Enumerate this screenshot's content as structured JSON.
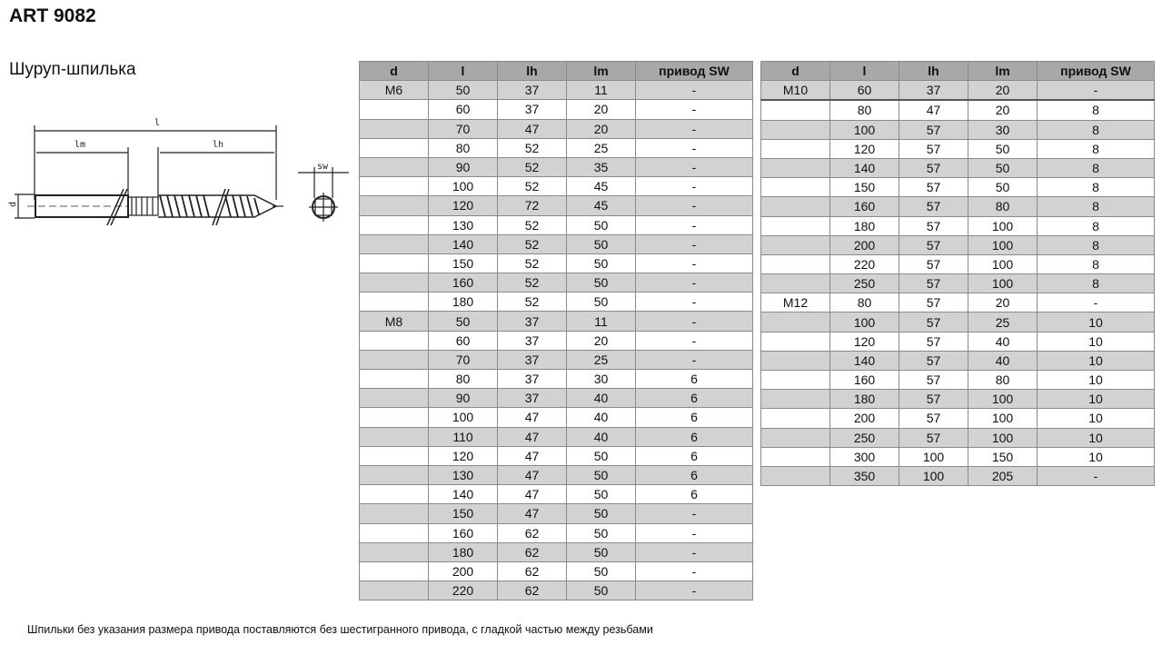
{
  "title": "ART 9082",
  "subtitle": "Шуруп-шпилька",
  "drawing": {
    "labels": {
      "l": "l",
      "lm": "lm",
      "lh": "lh",
      "d": "d",
      "sw": "sw"
    }
  },
  "tables": [
    {
      "headers": [
        "d",
        "l",
        "lh",
        "lm",
        "привод SW"
      ],
      "rows": [
        [
          "M6",
          "50",
          "37",
          "11",
          "-"
        ],
        [
          "",
          "60",
          "37",
          "20",
          "-"
        ],
        [
          "",
          "70",
          "47",
          "20",
          "-"
        ],
        [
          "",
          "80",
          "52",
          "25",
          "-"
        ],
        [
          "",
          "90",
          "52",
          "35",
          "-"
        ],
        [
          "",
          "100",
          "52",
          "45",
          "-"
        ],
        [
          "",
          "120",
          "72",
          "45",
          "-"
        ],
        [
          "",
          "130",
          "52",
          "50",
          "-"
        ],
        [
          "",
          "140",
          "52",
          "50",
          "-"
        ],
        [
          "",
          "150",
          "52",
          "50",
          "-"
        ],
        [
          "",
          "160",
          "52",
          "50",
          "-"
        ],
        [
          "",
          "180",
          "52",
          "50",
          "-"
        ],
        [
          "M8",
          "50",
          "37",
          "11",
          "-"
        ],
        [
          "",
          "60",
          "37",
          "20",
          "-"
        ],
        [
          "",
          "70",
          "37",
          "25",
          "-"
        ],
        [
          "",
          "80",
          "37",
          "30",
          "6"
        ],
        [
          "",
          "90",
          "37",
          "40",
          "6"
        ],
        [
          "",
          "100",
          "47",
          "40",
          "6"
        ],
        [
          "",
          "110",
          "47",
          "40",
          "6"
        ],
        [
          "",
          "120",
          "47",
          "50",
          "6"
        ],
        [
          "",
          "130",
          "47",
          "50",
          "6"
        ],
        [
          "",
          "140",
          "47",
          "50",
          "6"
        ],
        [
          "",
          "150",
          "47",
          "50",
          "-"
        ],
        [
          "",
          "160",
          "62",
          "50",
          "-"
        ],
        [
          "",
          "180",
          "62",
          "50",
          "-"
        ],
        [
          "",
          "200",
          "62",
          "50",
          "-"
        ],
        [
          "",
          "220",
          "62",
          "50",
          "-"
        ]
      ]
    },
    {
      "headers": [
        "d",
        "l",
        "lh",
        "lm",
        "привод SW"
      ],
      "rows": [
        [
          "M10",
          "60",
          "37",
          "20",
          "-"
        ],
        [
          "",
          "80",
          "47",
          "20",
          "8"
        ],
        [
          "",
          "100",
          "57",
          "30",
          "8"
        ],
        [
          "",
          "120",
          "57",
          "50",
          "8"
        ],
        [
          "",
          "140",
          "57",
          "50",
          "8"
        ],
        [
          "",
          "150",
          "57",
          "50",
          "8"
        ],
        [
          "",
          "160",
          "57",
          "80",
          "8"
        ],
        [
          "",
          "180",
          "57",
          "100",
          "8"
        ],
        [
          "",
          "200",
          "57",
          "100",
          "8"
        ],
        [
          "",
          "220",
          "57",
          "100",
          "8"
        ],
        [
          "",
          "250",
          "57",
          "100",
          "8"
        ],
        [
          "M12",
          "80",
          "57",
          "20",
          "-"
        ],
        [
          "",
          "100",
          "57",
          "25",
          "10"
        ],
        [
          "",
          "120",
          "57",
          "40",
          "10"
        ],
        [
          "",
          "140",
          "57",
          "40",
          "10"
        ],
        [
          "",
          "160",
          "57",
          "80",
          "10"
        ],
        [
          "",
          "180",
          "57",
          "100",
          "10"
        ],
        [
          "",
          "200",
          "57",
          "100",
          "10"
        ],
        [
          "",
          "250",
          "57",
          "100",
          "10"
        ],
        [
          "",
          "300",
          "100",
          "150",
          "10"
        ],
        [
          "",
          "350",
          "100",
          "205",
          "-"
        ]
      ]
    }
  ],
  "note": "Шпильки без указания размера привода поставляются без шестигранного привода, с гладкой частью между резьбами"
}
